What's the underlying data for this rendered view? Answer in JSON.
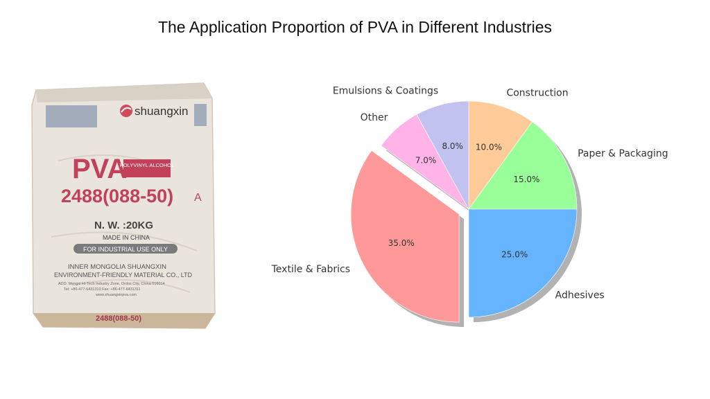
{
  "chart_data": {
    "type": "pie",
    "title": "The Application Proportion of PVA in Different Industries",
    "startangle_deg": 90,
    "exploded": "Textile & Fabrics",
    "shadow": true,
    "slices": [
      {
        "label": "Construction",
        "value": 10.0,
        "pct_label": "10.0%",
        "color": "#ffcc99"
      },
      {
        "label": "Paper & Packaging",
        "value": 15.0,
        "pct_label": "15.0%",
        "color": "#99ff99"
      },
      {
        "label": "Adhesives",
        "value": 25.0,
        "pct_label": "25.0%",
        "color": "#66b3ff"
      },
      {
        "label": "Textile & Fabrics",
        "value": 35.0,
        "pct_label": "35.0%",
        "color": "#ff9999"
      },
      {
        "label": "Other",
        "value": 7.0,
        "pct_label": "7.0%",
        "color": "#ffb3e6"
      },
      {
        "label": "Emulsions & Coatings",
        "value": 8.0,
        "pct_label": "8.0%",
        "color": "#c2c2f0"
      }
    ]
  },
  "bag": {
    "brand": "shuangxin",
    "product": "PVA",
    "product_sub": "POLYVINYL ALCOHOL",
    "grade": "2488(088-50)",
    "grade_suffix": "A",
    "net_weight": "N. W. :20KG",
    "origin": "MADE IN CHINA",
    "use_note": "FOR INDUSTRIAL USE ONLY",
    "company_line1": "INNER MONGOLIA SHUANGXIN",
    "company_line2": "ENVIRONMENT-FRIENDLY MATERIAL CO., LTD",
    "address": "ADD: Mengxi Hi-Tech Industry Zone, Ordos City, China 016014",
    "phone": "Tel: +86-477-6431310   Fax: +86-477-6431311",
    "website": "www.shuangxinpva.com",
    "bottom_code": "2488(088-50)"
  }
}
